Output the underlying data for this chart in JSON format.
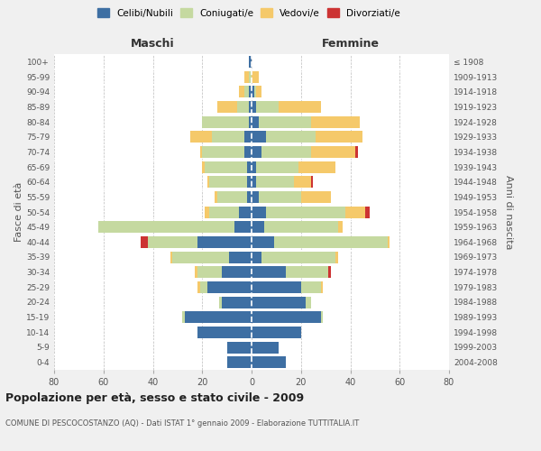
{
  "age_groups": [
    "0-4",
    "5-9",
    "10-14",
    "15-19",
    "20-24",
    "25-29",
    "30-34",
    "35-39",
    "40-44",
    "45-49",
    "50-54",
    "55-59",
    "60-64",
    "65-69",
    "70-74",
    "75-79",
    "80-84",
    "85-89",
    "90-94",
    "95-99",
    "100+"
  ],
  "birth_years": [
    "2004-2008",
    "1999-2003",
    "1994-1998",
    "1989-1993",
    "1984-1988",
    "1979-1983",
    "1974-1978",
    "1969-1973",
    "1964-1968",
    "1959-1963",
    "1954-1958",
    "1949-1953",
    "1944-1948",
    "1939-1943",
    "1934-1938",
    "1929-1933",
    "1924-1928",
    "1919-1923",
    "1914-1918",
    "1909-1913",
    "≤ 1908"
  ],
  "males": {
    "celibi": [
      10,
      10,
      22,
      27,
      12,
      18,
      12,
      9,
      22,
      7,
      5,
      2,
      2,
      2,
      3,
      3,
      1,
      1,
      1,
      0,
      1
    ],
    "coniugati": [
      0,
      0,
      0,
      1,
      1,
      3,
      10,
      23,
      20,
      55,
      12,
      12,
      15,
      17,
      17,
      13,
      19,
      5,
      2,
      1,
      0
    ],
    "vedovi": [
      0,
      0,
      0,
      0,
      0,
      1,
      1,
      1,
      0,
      0,
      2,
      1,
      1,
      1,
      1,
      9,
      0,
      8,
      2,
      2,
      0
    ],
    "divorziati": [
      0,
      0,
      0,
      0,
      0,
      0,
      0,
      0,
      3,
      0,
      0,
      0,
      0,
      0,
      0,
      0,
      0,
      0,
      0,
      0,
      0
    ]
  },
  "females": {
    "nubili": [
      14,
      11,
      20,
      28,
      22,
      20,
      14,
      4,
      9,
      5,
      6,
      3,
      2,
      2,
      4,
      6,
      3,
      2,
      1,
      0,
      0
    ],
    "coniugate": [
      0,
      0,
      0,
      1,
      2,
      8,
      17,
      30,
      46,
      30,
      32,
      17,
      15,
      17,
      20,
      20,
      21,
      9,
      1,
      0,
      0
    ],
    "vedove": [
      0,
      0,
      0,
      0,
      0,
      1,
      0,
      1,
      1,
      2,
      8,
      12,
      7,
      15,
      18,
      19,
      20,
      17,
      2,
      3,
      0
    ],
    "divorziate": [
      0,
      0,
      0,
      0,
      0,
      0,
      1,
      0,
      0,
      0,
      2,
      0,
      1,
      0,
      1,
      0,
      0,
      0,
      0,
      0,
      0
    ]
  },
  "colors": {
    "celibi": "#3e6fa3",
    "coniugati": "#c5d9a0",
    "vedovi": "#f5c96a",
    "divorziati": "#cc3333"
  },
  "xlim": 80,
  "title": "Popolazione per età, sesso e stato civile - 2009",
  "subtitle": "COMUNE DI PESCOCOSTANZO (AQ) - Dati ISTAT 1° gennaio 2009 - Elaborazione TUTTITALIA.IT",
  "xlabel_left": "Maschi",
  "xlabel_right": "Femmine",
  "ylabel_left": "Fasce di età",
  "ylabel_right": "Anni di nascita",
  "legend_labels": [
    "Celibi/Nubili",
    "Coniugati/e",
    "Vedovi/e",
    "Divorziati/e"
  ],
  "bg_color": "#f0f0f0",
  "plot_bg_color": "#ffffff",
  "grid_color": "#bbbbbb"
}
